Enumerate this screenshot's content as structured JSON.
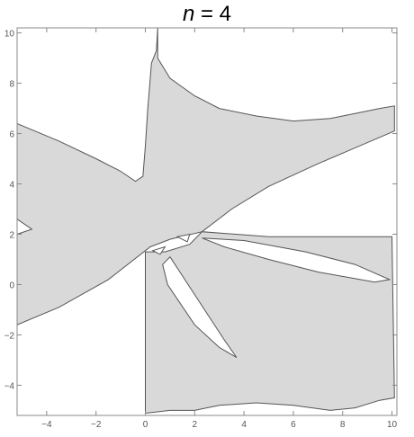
{
  "chart_data": {
    "type": "region",
    "title": {
      "var": "n",
      "rest": " = 4"
    },
    "xlabel": "",
    "ylabel": "",
    "xlim": [
      -5.2,
      10.2
    ],
    "ylim": [
      -5.2,
      10.2
    ],
    "x_ticks": [
      -4,
      -2,
      0,
      2,
      4,
      6,
      8,
      10
    ],
    "y_ticks": [
      -4,
      -2,
      0,
      2,
      4,
      6,
      8,
      10
    ],
    "fill_color": "#d9d9d9",
    "boundary_color": "#555555",
    "frame_color": "#888888",
    "shaded_region": [
      [
        -5.2,
        6.4
      ],
      [
        -3.5,
        5.7
      ],
      [
        -2.0,
        5.0
      ],
      [
        -1.0,
        4.5
      ],
      [
        -0.4,
        4.1
      ],
      [
        -0.1,
        4.3
      ],
      [
        0.0,
        5.5
      ],
      [
        0.1,
        7.0
      ],
      [
        0.25,
        8.8
      ],
      [
        0.45,
        9.3
      ],
      [
        0.5,
        10.2
      ],
      [
        0.5,
        9.0
      ],
      [
        1.0,
        8.2
      ],
      [
        2.0,
        7.5
      ],
      [
        3.0,
        7.0
      ],
      [
        4.5,
        6.7
      ],
      [
        6.0,
        6.5
      ],
      [
        7.5,
        6.6
      ],
      [
        8.5,
        6.8
      ],
      [
        9.5,
        7.0
      ],
      [
        10.1,
        7.1
      ],
      [
        10.1,
        6.1
      ],
      [
        7.0,
        4.8
      ],
      [
        5.0,
        3.9
      ],
      [
        3.5,
        3.0
      ],
      [
        2.3,
        2.1
      ],
      [
        1.0,
        1.8
      ],
      [
        0.2,
        1.5
      ],
      [
        -1.5,
        0.2
      ],
      [
        -3.5,
        -0.9
      ],
      [
        -5.2,
        -1.6
      ]
    ],
    "shaded_region_lower": [
      [
        0.0,
        1.3
      ],
      [
        0.8,
        1.3
      ],
      [
        1.8,
        1.6
      ],
      [
        2.3,
        2.1
      ],
      [
        5.0,
        1.9
      ],
      [
        10.0,
        1.9
      ],
      [
        10.1,
        -4.5
      ],
      [
        9.5,
        -4.6
      ],
      [
        8.5,
        -4.9
      ],
      [
        7.5,
        -5.0
      ],
      [
        6.0,
        -4.8
      ],
      [
        4.5,
        -4.7
      ],
      [
        3.0,
        -4.8
      ],
      [
        2.0,
        -5.0
      ],
      [
        1.0,
        -5.0
      ],
      [
        0.1,
        -5.1
      ],
      [
        0.0,
        -5.1
      ]
    ],
    "holes": [
      {
        "name": "left-notch",
        "points": [
          [
            -5.2,
            2.6
          ],
          [
            -4.6,
            2.2
          ],
          [
            -5.2,
            2.0
          ]
        ]
      },
      {
        "name": "tiny-loop-1",
        "points": [
          [
            0.3,
            1.35
          ],
          [
            0.8,
            1.5
          ],
          [
            0.6,
            1.2
          ]
        ]
      },
      {
        "name": "tiny-loop-2",
        "points": [
          [
            1.3,
            1.9
          ],
          [
            1.8,
            2.0
          ],
          [
            1.7,
            1.7
          ]
        ]
      },
      {
        "name": "long-petal",
        "points": [
          [
            1.0,
            1.1
          ],
          [
            0.7,
            0.8
          ],
          [
            0.9,
            0.0
          ],
          [
            2.0,
            -1.6
          ],
          [
            3.0,
            -2.5
          ],
          [
            3.7,
            -2.9
          ],
          [
            3.2,
            -2.2
          ],
          [
            2.2,
            -0.7
          ],
          [
            1.4,
            0.5
          ]
        ]
      },
      {
        "name": "right-petal",
        "points": [
          [
            2.3,
            1.85
          ],
          [
            4.0,
            1.75
          ],
          [
            6.5,
            1.3
          ],
          [
            8.5,
            0.8
          ],
          [
            9.9,
            0.2
          ],
          [
            9.3,
            0.1
          ],
          [
            7.0,
            0.5
          ],
          [
            5.0,
            1.0
          ],
          [
            3.2,
            1.5
          ]
        ]
      }
    ]
  }
}
